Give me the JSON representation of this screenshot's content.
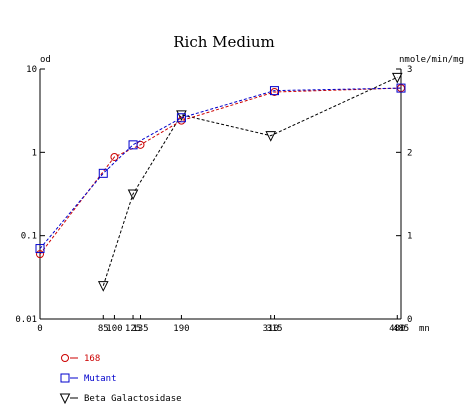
{
  "chart_data": {
    "type": "line",
    "title": "Rich Medium",
    "ylabel_left": "od",
    "ylabel_right": "nmole/min/mg",
    "xlabel": "mn",
    "x_ticks": [
      0,
      85,
      100,
      125,
      135,
      190,
      310,
      315,
      480,
      485
    ],
    "x_tick_labels": [
      "0",
      "85",
      "100",
      "125",
      "135",
      "190",
      "310",
      "315",
      "480",
      "485"
    ],
    "xlim": [
      0,
      485
    ],
    "y_left": {
      "scale": "log",
      "lim": [
        0.01,
        10
      ],
      "ticks": [
        0.01,
        0.1,
        1,
        10
      ],
      "tick_labels": [
        "0.01",
        "0.1",
        "1",
        "10"
      ]
    },
    "y_right": {
      "scale": "linear",
      "lim": [
        0,
        3
      ],
      "ticks": [
        0,
        1,
        2,
        3
      ],
      "tick_labels": [
        "0",
        "1",
        "2",
        "3"
      ]
    },
    "grid": false,
    "legend_position": "bottom-left",
    "series": [
      {
        "name": "168",
        "axis": "left",
        "marker": "circle",
        "color": "#cc0000",
        "line_style": "dashed",
        "x": [
          0,
          100,
          135,
          190,
          315,
          485
        ],
        "y": [
          0.06,
          0.88,
          1.23,
          2.4,
          5.3,
          5.9
        ]
      },
      {
        "name": "Mutant",
        "axis": "left",
        "marker": "square",
        "color": "#0000cc",
        "line_style": "dashed",
        "x": [
          0,
          85,
          125,
          190,
          315,
          485
        ],
        "y": [
          0.07,
          0.56,
          1.23,
          2.6,
          5.5,
          5.9
        ]
      },
      {
        "name": "Beta Galactosidase",
        "axis": "right",
        "marker": "triangle-down",
        "color": "#000000",
        "line_style": "dashed",
        "x": [
          85,
          125,
          190,
          310,
          480
        ],
        "y": [
          0.4,
          1.5,
          2.45,
          2.2,
          2.9
        ]
      }
    ]
  }
}
